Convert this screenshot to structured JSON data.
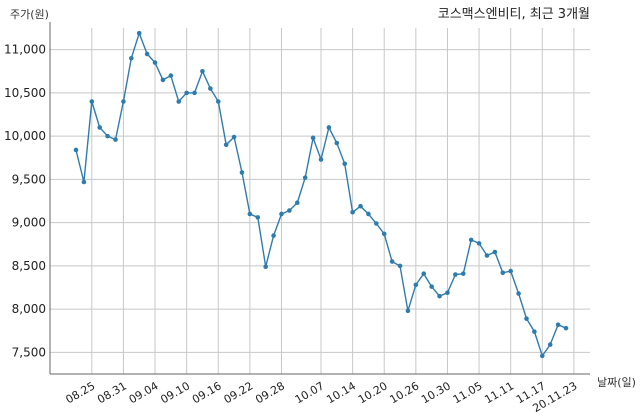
{
  "chart_data": {
    "type": "line",
    "title": "코스맥스엔비티, 최근 3개월",
    "ylabel": "주가(원)",
    "xlabel": "날짜(일)",
    "grid": true,
    "ylim": [
      7250,
      11250
    ],
    "yticks": [
      7500,
      8000,
      8500,
      9000,
      9500,
      10000,
      10500,
      11000
    ],
    "ytick_labels": [
      "7,500",
      "8,000",
      "8,500",
      "9,000",
      "9,500",
      "10,000",
      "10,500",
      "11,000"
    ],
    "xticks": [
      {
        "index": 2,
        "label": "08.25"
      },
      {
        "index": 6,
        "label": "08.31"
      },
      {
        "index": 10,
        "label": "09.04"
      },
      {
        "index": 14,
        "label": "09.10"
      },
      {
        "index": 18,
        "label": "09.16"
      },
      {
        "index": 22,
        "label": "09.22"
      },
      {
        "index": 26,
        "label": "09.28"
      },
      {
        "index": 31,
        "label": "10.07"
      },
      {
        "index": 35,
        "label": "10.14"
      },
      {
        "index": 39,
        "label": "10.20"
      },
      {
        "index": 43,
        "label": "10.26"
      },
      {
        "index": 47,
        "label": "10.30"
      },
      {
        "index": 51,
        "label": "11.05"
      },
      {
        "index": 55,
        "label": "11.11"
      },
      {
        "index": 59,
        "label": "11.17"
      },
      {
        "index": 63,
        "label": "20.11.23"
      }
    ],
    "series": [
      {
        "values": [
          9840,
          9470,
          10400,
          10100,
          10000,
          9960,
          10400,
          10900,
          11190,
          10950,
          10850,
          10650,
          10700,
          10400,
          10500,
          10500,
          10750,
          10550,
          10400,
          9900,
          9990,
          9580,
          9100,
          9060,
          8490,
          8850,
          9100,
          9140,
          9230,
          9520,
          9980,
          9730,
          10100,
          9920,
          9680,
          9120,
          9190,
          9100,
          8990,
          8870,
          8550,
          8500,
          7980,
          8280,
          8410,
          8260,
          8150,
          8190,
          8400,
          8410,
          8800,
          8760,
          8620,
          8660,
          8420,
          8440,
          8180,
          7890,
          7740,
          7460,
          7590,
          7820,
          7780
        ]
      }
    ]
  }
}
